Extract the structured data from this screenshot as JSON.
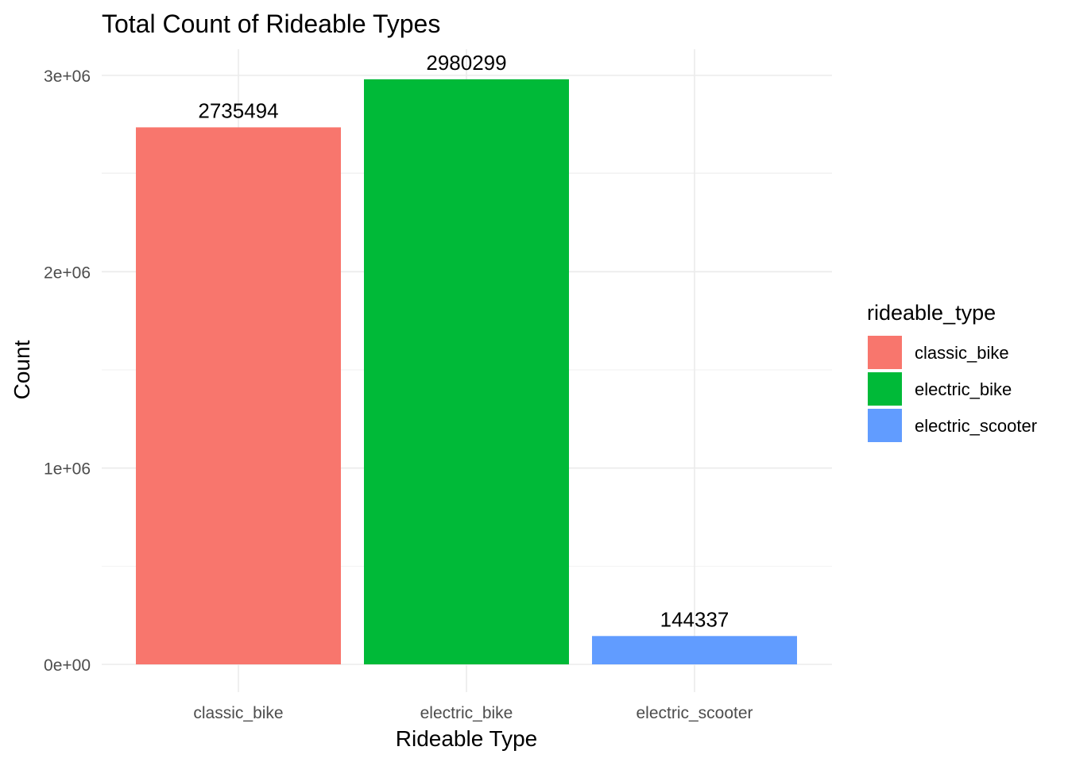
{
  "chart_data": {
    "type": "bar",
    "title": "Total Count of Rideable Types",
    "xlabel": "Rideable Type",
    "ylabel": "Count",
    "categories": [
      "classic_bike",
      "electric_bike",
      "electric_scooter"
    ],
    "values": [
      2735494,
      2980299,
      144337
    ],
    "data_labels": [
      "2735494",
      "2980299",
      "144337"
    ],
    "colors": [
      "#F8766D",
      "#00BA38",
      "#619CFF"
    ],
    "ylim": [
      0,
      3000000
    ],
    "y_ticks": [
      {
        "value": 0,
        "label": "0e+00"
      },
      {
        "value": 1000000,
        "label": "1e+06"
      },
      {
        "value": 2000000,
        "label": "2e+06"
      },
      {
        "value": 3000000,
        "label": "3e+06"
      }
    ],
    "grid": true,
    "legend": {
      "title": "rideable_type",
      "placement": "right",
      "entries": [
        "classic_bike",
        "electric_bike",
        "electric_scooter"
      ]
    }
  }
}
